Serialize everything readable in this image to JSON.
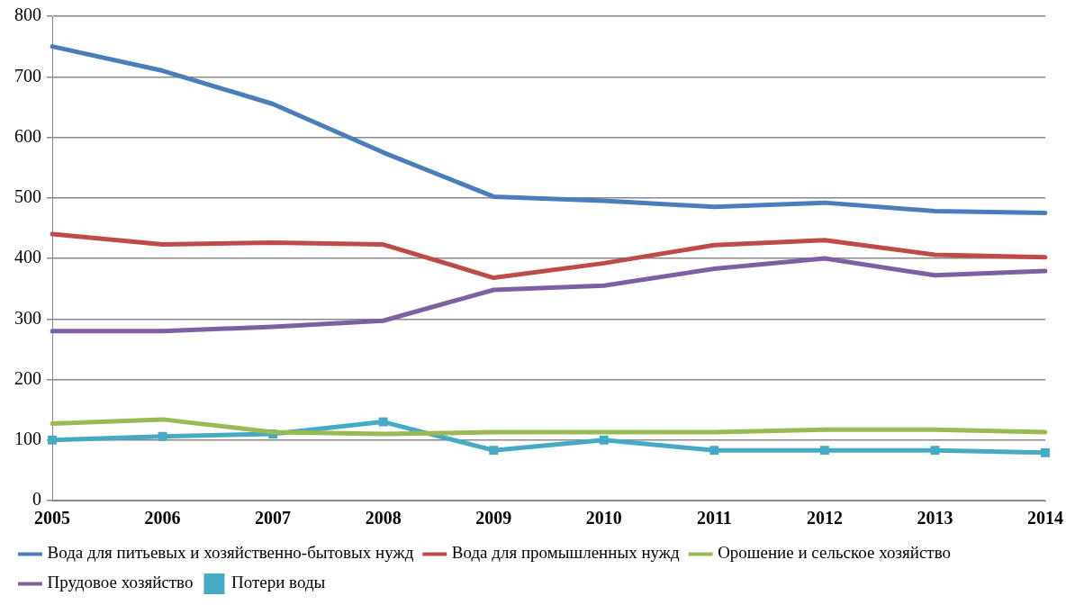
{
  "chart_data": {
    "type": "line",
    "categories": [
      "2005",
      "2006",
      "2007",
      "2008",
      "2009",
      "2010",
      "2011",
      "2012",
      "2013",
      "2014"
    ],
    "series": [
      {
        "name": "Вода для питьевых и хозяйственно-бытовых нужд",
        "color": "#4a7ebb",
        "marker": "none",
        "values": [
          750,
          710,
          655,
          575,
          502,
          495,
          485,
          492,
          478,
          475
        ]
      },
      {
        "name": "Вода для промышленных нужд",
        "color": "#be4b48",
        "marker": "none",
        "values": [
          440,
          423,
          426,
          423,
          368,
          392,
          422,
          430,
          406,
          402
        ]
      },
      {
        "name": "Орошение и сельское хозяйство",
        "color": "#98b954",
        "marker": "none",
        "values": [
          127,
          134,
          113,
          110,
          113,
          113,
          113,
          117,
          117,
          113
        ]
      },
      {
        "name": "Прудовое хозяйство",
        "color": "#7d60a0",
        "marker": "none",
        "values": [
          280,
          280,
          287,
          297,
          348,
          355,
          383,
          400,
          372,
          379
        ]
      },
      {
        "name": "Потери воды",
        "color": "#46aac5",
        "marker": "square",
        "values": [
          100,
          106,
          110,
          130,
          83,
          100,
          83,
          83,
          83,
          79
        ]
      }
    ],
    "ylim": [
      0,
      800
    ],
    "yticks": [
      0,
      100,
      200,
      300,
      400,
      500,
      600,
      700,
      800
    ],
    "grid": "y",
    "legend": "bottom",
    "line_style": "solid"
  }
}
